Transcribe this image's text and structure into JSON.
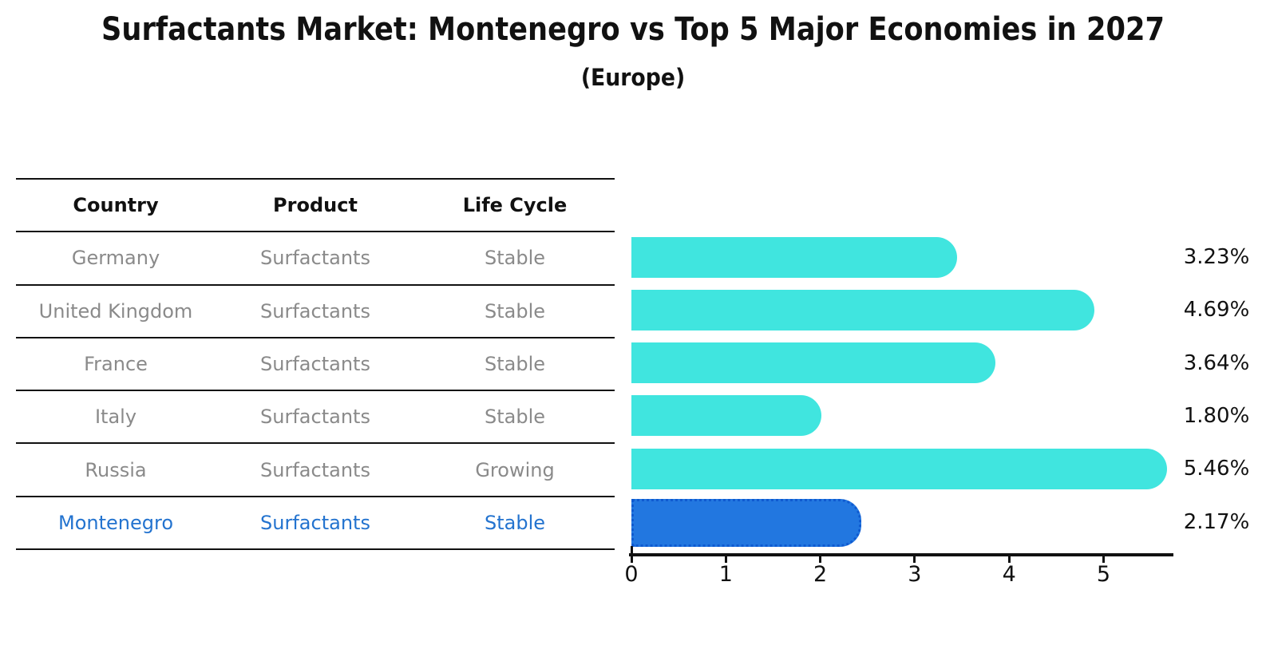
{
  "title": "Surfactants Market: Montenegro vs Top 5 Major Economies in 2027",
  "subtitle": "(Europe)",
  "colors": {
    "bar_fill": "#40E5DF",
    "highlight_bar_fill": "#2277E0",
    "highlight_bar_border": "#0F5AD0",
    "table_text": "#8a8a8a",
    "highlight_text": "#2373CF",
    "axis": "#111111"
  },
  "table": {
    "headers": [
      "Country",
      "Product",
      "Life Cycle"
    ],
    "rows": [
      {
        "country": "Germany",
        "product": "Surfactants",
        "life_cycle": "Stable",
        "highlight": false
      },
      {
        "country": "United Kingdom",
        "product": "Surfactants",
        "life_cycle": "Stable",
        "highlight": false
      },
      {
        "country": "France",
        "product": "Surfactants",
        "life_cycle": "Stable",
        "highlight": false
      },
      {
        "country": "Italy",
        "product": "Surfactants",
        "life_cycle": "Stable",
        "highlight": false
      },
      {
        "country": "Russia",
        "product": "Surfactants",
        "life_cycle": "Growing",
        "highlight": false
      },
      {
        "country": "Montenegro",
        "product": "Surfactants",
        "life_cycle": "Stable",
        "highlight": true
      }
    ]
  },
  "chart_data": {
    "type": "bar",
    "orientation": "horizontal",
    "categories": [
      "Germany",
      "United Kingdom",
      "France",
      "Italy",
      "Russia",
      "Montenegro"
    ],
    "values": [
      3.23,
      4.69,
      3.64,
      1.8,
      5.46,
      2.17
    ],
    "value_labels": [
      "3.23%",
      "4.69%",
      "3.64%",
      "1.80%",
      "5.46%",
      "2.17%"
    ],
    "highlight_index": 5,
    "title": "Surfactants Market: Montenegro vs Top 5 Major Economies in 2027",
    "subtitle": "(Europe)",
    "xlabel": "",
    "ylabel": "",
    "x_ticks": [
      0,
      1,
      2,
      3,
      4,
      5
    ],
    "xlim": [
      0,
      5.75
    ],
    "grid": false,
    "legend": false
  }
}
